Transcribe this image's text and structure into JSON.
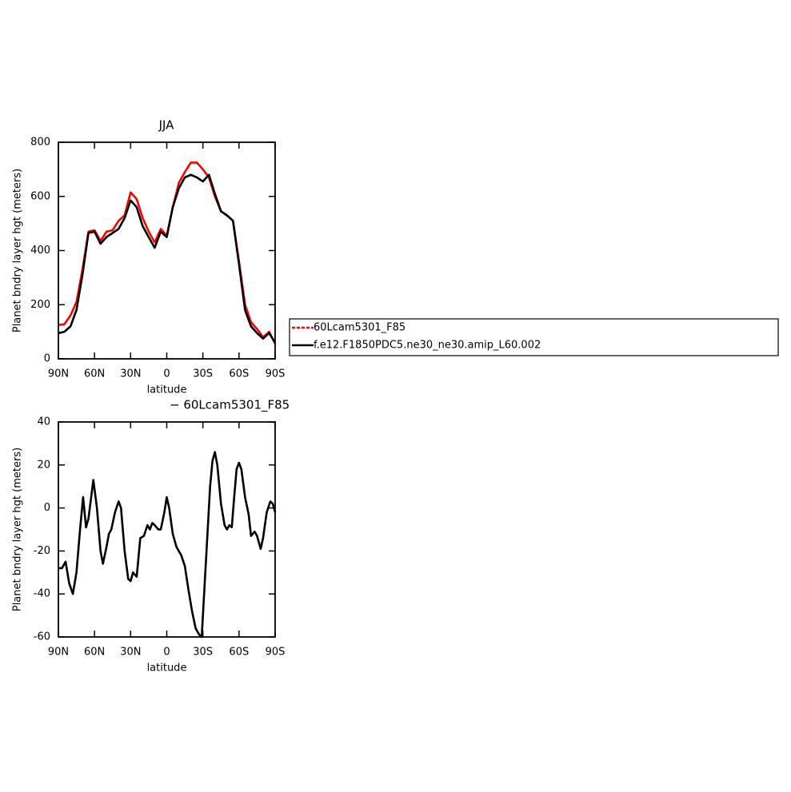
{
  "chart_data": [
    {
      "type": "line",
      "title": "JJA",
      "xlabel": "latitude",
      "ylabel": "Planet bndry layer hgt (meters)",
      "x": [
        90,
        85,
        80,
        75,
        70,
        65,
        60,
        55,
        50,
        45,
        40,
        35,
        30,
        25,
        20,
        15,
        10,
        5,
        0,
        -5,
        -10,
        -15,
        -20,
        -25,
        -30,
        -35,
        -40,
        -45,
        -50,
        -55,
        -60,
        -65,
        -70,
        -75,
        -80,
        -85,
        -90
      ],
      "series": [
        {
          "name": "60Lcam5301_F85",
          "color": "#ff0000",
          "values": [
            125,
            128,
            160,
            210,
            330,
            470,
            475,
            435,
            470,
            475,
            510,
            530,
            615,
            590,
            520,
            470,
            430,
            480,
            455,
            560,
            650,
            690,
            725,
            725,
            700,
            670,
            600,
            545,
            530,
            510,
            360,
            200,
            135,
            110,
            80,
            100,
            55
          ]
        },
        {
          "name": "f.e12.F1850PDC5.ne30_ne30.amip_L60.002",
          "color": "#000000",
          "values": [
            95,
            100,
            120,
            180,
            310,
            465,
            470,
            425,
            450,
            465,
            480,
            520,
            585,
            560,
            490,
            450,
            410,
            470,
            450,
            560,
            630,
            670,
            680,
            670,
            655,
            680,
            610,
            545,
            530,
            510,
            350,
            180,
            120,
            95,
            75,
            95,
            60
          ]
        }
      ],
      "xlim": [
        90,
        -90
      ],
      "xticks": [
        {
          "value": 90,
          "label": "90N"
        },
        {
          "value": 60,
          "label": "60N"
        },
        {
          "value": 30,
          "label": "30N"
        },
        0,
        {
          "value": -30,
          "label": "30S"
        },
        {
          "value": -60,
          "label": "60S"
        },
        {
          "value": -90,
          "label": "90S"
        }
      ],
      "ylim": [
        0,
        800
      ],
      "yticks": [
        0,
        200,
        400,
        600,
        800
      ],
      "legend": "right"
    },
    {
      "type": "line",
      "title": "− 60Lcam5301_F85",
      "xlabel": "latitude",
      "ylabel": "Planet bndry layer hgt (meters)",
      "x": [
        90,
        87,
        84,
        81,
        78,
        75,
        72,
        69.5,
        67,
        65,
        61,
        58,
        55,
        53,
        50,
        48,
        46,
        43,
        40,
        38,
        35,
        32,
        30,
        28,
        25,
        22,
        19,
        16,
        14,
        12,
        10,
        7,
        5,
        2,
        0,
        -2,
        -5,
        -8,
        -12,
        -15,
        -18,
        -21,
        -24,
        -27,
        -29,
        -31,
        -34,
        -36,
        -38,
        -40,
        -42,
        -45,
        -48,
        -50,
        -52,
        -54,
        -56,
        -58,
        -60,
        -62,
        -65,
        -68,
        -70,
        -73,
        -75,
        -78,
        -80,
        -83,
        -86,
        -88,
        -90
      ],
      "color": "#000000",
      "values": [
        -28,
        -28,
        -25,
        -35,
        -40,
        -30,
        -10,
        5,
        -9,
        -5,
        13,
        0,
        -20,
        -26,
        -18,
        -12,
        -10,
        -2,
        3,
        0,
        -20,
        -33,
        -34,
        -30,
        -32,
        -14,
        -13,
        -8,
        -10,
        -7,
        -8,
        -10,
        -10,
        -2,
        5,
        0,
        -12,
        -18,
        -22,
        -27,
        -38,
        -48,
        -56,
        -59,
        -60,
        -40,
        -10,
        10,
        22,
        26,
        20,
        2,
        -8,
        -10,
        -8,
        -9,
        5,
        18,
        21,
        18,
        5,
        -3,
        -13,
        -11,
        -13,
        -19,
        -14,
        -2,
        3,
        2,
        -2
      ],
      "xlim": [
        90,
        -90
      ],
      "xticks": [
        {
          "value": 90,
          "label": "90N"
        },
        {
          "value": 60,
          "label": "60N"
        },
        {
          "value": 30,
          "label": "30N"
        },
        0,
        {
          "value": -30,
          "label": "30S"
        },
        {
          "value": -60,
          "label": "60S"
        },
        {
          "value": -90,
          "label": "90S"
        }
      ],
      "ylim": [
        -60,
        40
      ],
      "yticks": [
        -60,
        -40,
        -20,
        0,
        20,
        40
      ]
    }
  ]
}
